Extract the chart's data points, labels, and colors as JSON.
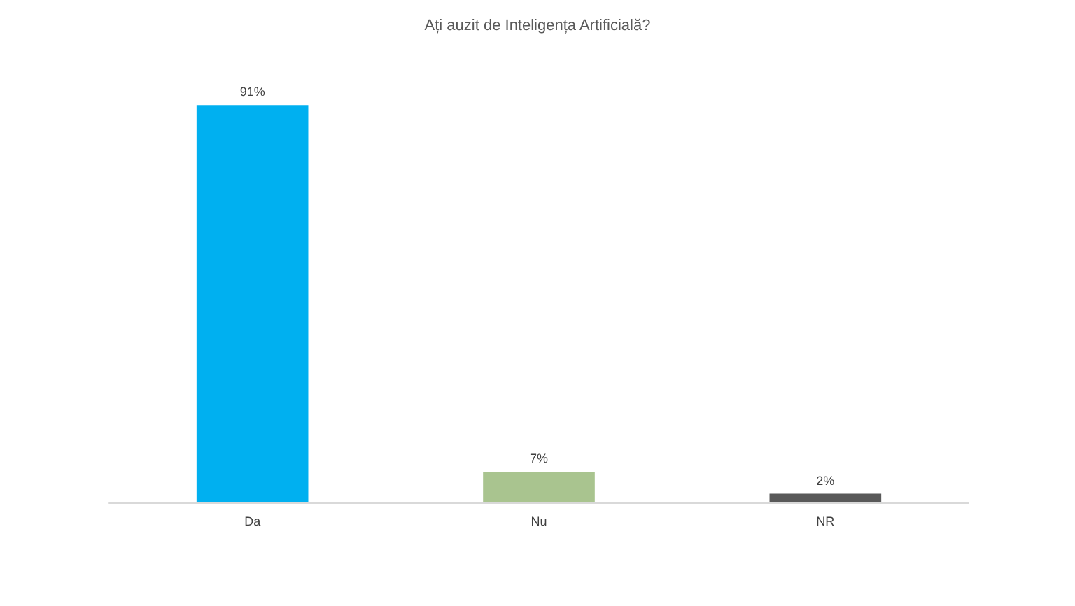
{
  "chart_data": {
    "type": "bar",
    "title": "Ați auzit de Inteligența Artificială?",
    "categories": [
      "Da",
      "Nu",
      "NR"
    ],
    "values": [
      91,
      7,
      2
    ],
    "value_labels": [
      "91%",
      "7%",
      "2%"
    ],
    "colors": [
      "#00b0f0",
      "#a9c48f",
      "#595959"
    ],
    "grid": false
  }
}
